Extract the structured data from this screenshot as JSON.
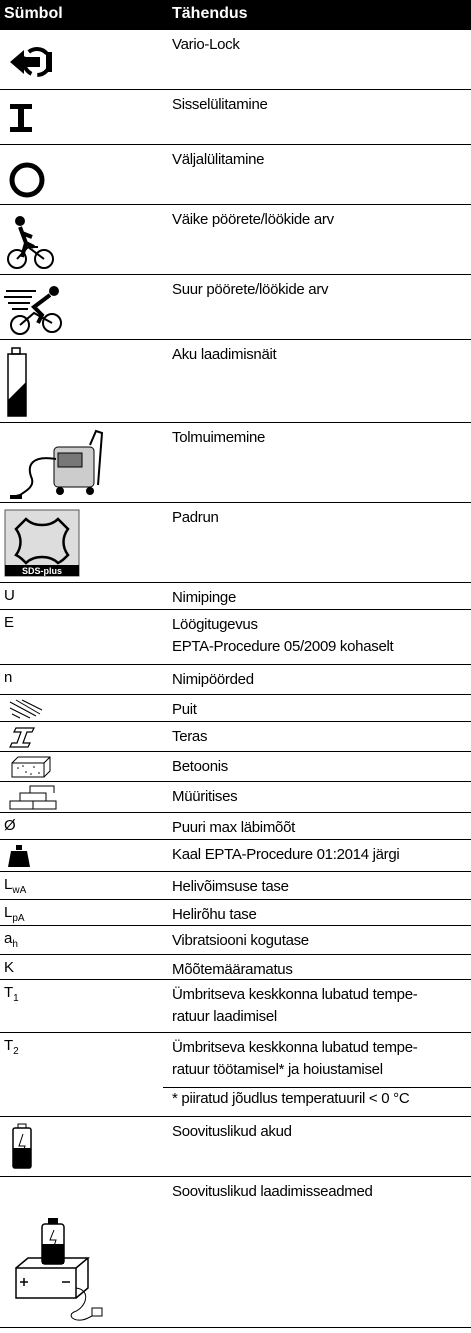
{
  "table": {
    "header": [
      "Sümbol",
      "Tähendus"
    ],
    "rows": [
      {
        "meaning": [
          "Vario-Lock"
        ]
      },
      {
        "meaning": [
          "Sisselülitamine"
        ]
      },
      {
        "meaning": [
          "Väljalülitamine"
        ]
      },
      {
        "meaning": [
          "Väike pöörete/löökide arv"
        ]
      },
      {
        "meaning": [
          "Suur pöörete/löökide arv"
        ]
      },
      {
        "meaning": [
          "Aku laadimisnäit"
        ]
      },
      {
        "meaning": [
          "Tolmuimemine"
        ]
      },
      {
        "icon_label": "SDS-plus",
        "meaning": [
          "Padrun"
        ]
      },
      {
        "symbol": {
          "text": "U"
        },
        "meaning": [
          "Nimipinge"
        ]
      },
      {
        "symbol": {
          "text": "E"
        },
        "meaning": [
          "Löögitugevus",
          "EPTA-Procedure 05/2009 kohaselt"
        ]
      },
      {
        "symbol": {
          "text": "n"
        },
        "meaning": [
          "Nimipöörded"
        ]
      },
      {
        "meaning": [
          "Puit"
        ]
      },
      {
        "meaning": [
          "Teras"
        ]
      },
      {
        "meaning": [
          "Betoonis"
        ]
      },
      {
        "meaning": [
          "Müüritises"
        ]
      },
      {
        "symbol": {
          "text": "Ø"
        },
        "meaning": [
          "Puuri max läbimõõt"
        ]
      },
      {
        "meaning": [
          "Kaal EPTA-Procedure 01:2014 järgi"
        ]
      },
      {
        "symbol": {
          "text": "L",
          "sub": "wA"
        },
        "meaning": [
          "Helivõimsuse tase"
        ]
      },
      {
        "symbol": {
          "text": "L",
          "sub": "pA"
        },
        "meaning": [
          "Helirõhu tase"
        ]
      },
      {
        "symbol": {
          "text": "a",
          "sub": "h"
        },
        "meaning": [
          "Vibratsiooni kogutase"
        ]
      },
      {
        "symbol": {
          "text": "K"
        },
        "meaning": [
          "Mõõtemääramatus"
        ]
      },
      {
        "symbol": {
          "text": "T",
          "sub": "1"
        },
        "meaning": [
          "Ümbritseva keskkonna lubatud tempe-",
          "ratuur laadimisel"
        ]
      },
      {
        "symbol": {
          "text": "T",
          "sub": "2"
        },
        "meaning": [
          "Ümbritseva keskkonna lubatud tempe-",
          "ratuur töötamisel* ja hoiustamisel"
        ],
        "note": "* piiratud jõudlus temperatuuril < 0 °C"
      },
      {
        "meaning": [
          "Soovituslikud akud"
        ]
      },
      {
        "meaning": [
          "Soovituslikud laadimisseadmed"
        ]
      }
    ]
  }
}
